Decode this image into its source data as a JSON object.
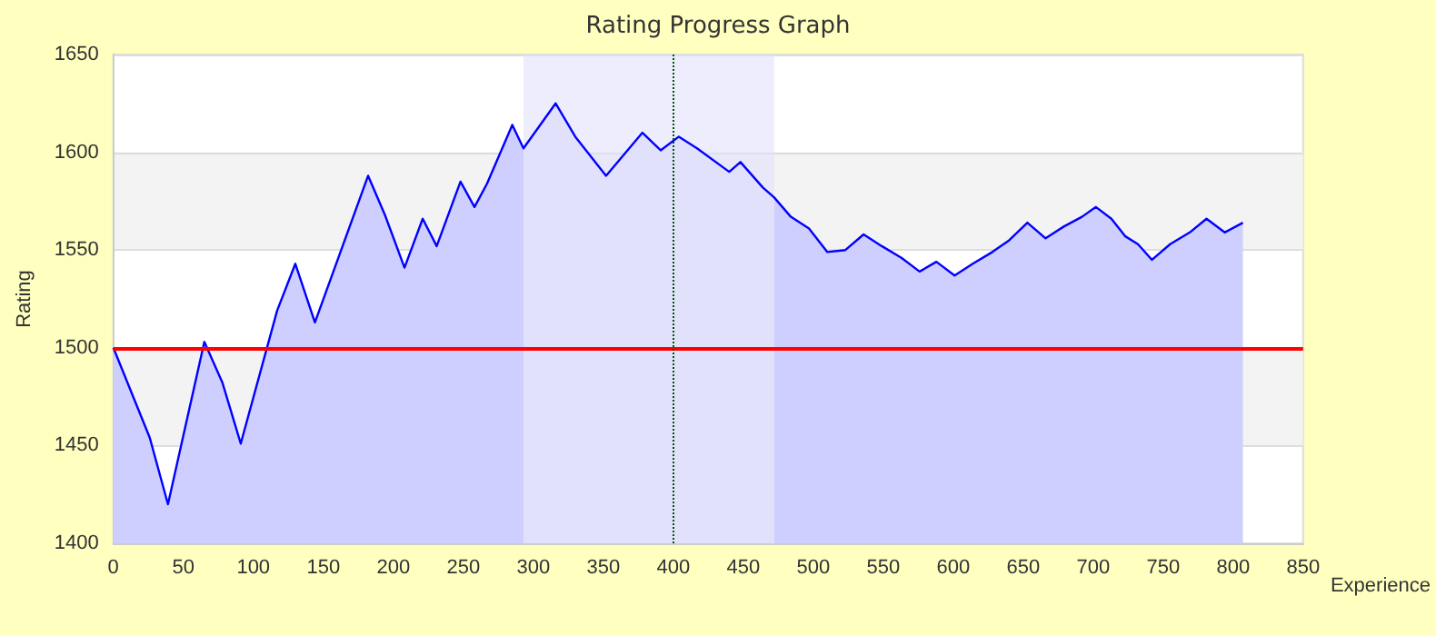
{
  "chart_data": {
    "type": "area",
    "title": "Rating Progress Graph",
    "xlabel": "Experience",
    "ylabel": "Rating",
    "series": [
      {
        "color": "#0000ff",
        "x": [
          0,
          26,
          39,
          65,
          78,
          91,
          117,
          130,
          144,
          182,
          194,
          208,
          221,
          231,
          248,
          258,
          267,
          285,
          293,
          316,
          330,
          352,
          378,
          391,
          404,
          417,
          440,
          448,
          464,
          472,
          484,
          497,
          510,
          523,
          536,
          549,
          563,
          576,
          588,
          601,
          614,
          628,
          640,
          653,
          666,
          679,
          692,
          702,
          713,
          723,
          732,
          742,
          755,
          769,
          781,
          794,
          807
        ],
        "values": [
          1500,
          1454,
          1420,
          1503,
          1482,
          1451,
          1519,
          1543,
          1513,
          1588,
          1568,
          1541,
          1566,
          1552,
          1585,
          1572,
          1584,
          1614,
          1602,
          1625,
          1608,
          1588,
          1610,
          1601,
          1608,
          1602,
          1590,
          1595,
          1582,
          1577,
          1567,
          1561,
          1549,
          1550,
          1558,
          1552,
          1546,
          1539,
          1544,
          1537,
          1543,
          1549,
          1555,
          1564,
          1556,
          1562,
          1567,
          1572,
          1566,
          1557,
          1553,
          1545,
          1553,
          1559,
          1566,
          1559,
          1564
        ]
      }
    ],
    "xlim": [
      0,
      850
    ],
    "xticks": [
      0,
      50,
      100,
      150,
      200,
      250,
      300,
      350,
      400,
      450,
      500,
      550,
      600,
      650,
      700,
      750,
      800,
      850
    ],
    "ylim": [
      1400,
      1650
    ],
    "yticks": [
      1400,
      1450,
      1500,
      1550,
      1600,
      1650
    ],
    "ref_lines": [
      {
        "axis": "y",
        "value": 1500,
        "color": "#ff0000",
        "line_style": "solid"
      },
      {
        "axis": "x",
        "value": 400,
        "color": "#005500",
        "line_style": "dotted"
      }
    ],
    "bands": [
      {
        "axis": "x",
        "from": 293,
        "to": 472,
        "color": "#e1e1fb"
      }
    ],
    "grid": "y",
    "marker": "none",
    "line_style": "solid"
  }
}
